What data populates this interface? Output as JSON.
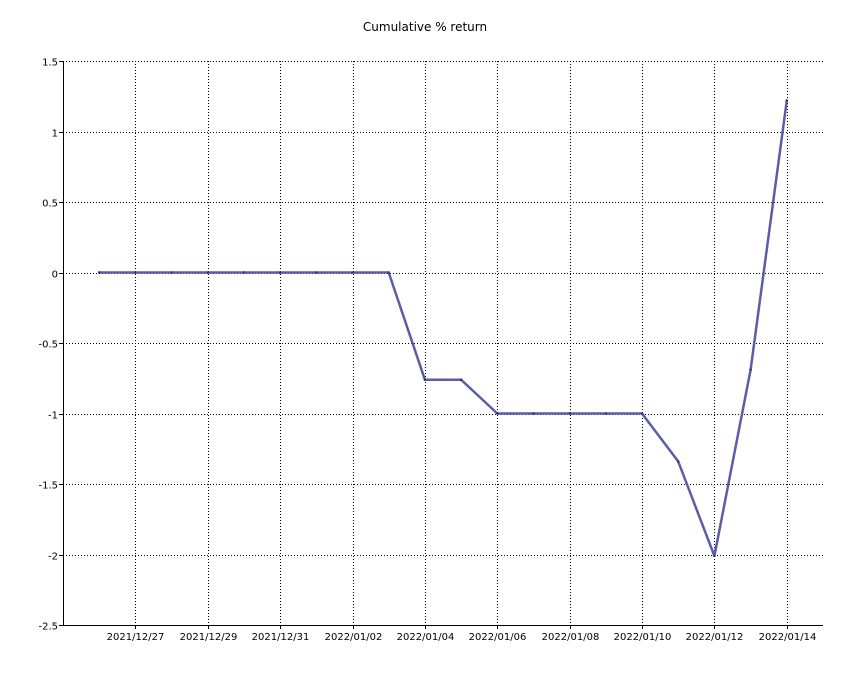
{
  "chart_data": {
    "type": "line",
    "title": "Cumulative % return",
    "xlabel": "",
    "ylabel": "",
    "ylim": [
      -2.5,
      1.5
    ],
    "yticks": [
      1.5,
      1,
      0.5,
      0,
      -0.5,
      -1,
      -1.5,
      -2,
      -2.5
    ],
    "ytick_labels": [
      "1.5",
      "1",
      "0.5",
      "0",
      "-0.5",
      "-1",
      "-1.5",
      "-2",
      "-2.5"
    ],
    "xlim": [
      "2021/12/25",
      "2022/01/15"
    ],
    "xtick_labels": [
      "2021/12/27",
      "2021/12/29",
      "2021/12/31",
      "2022/01/02",
      "2022/01/04",
      "2022/01/06",
      "2022/01/08",
      "2022/01/10",
      "2022/01/12",
      "2022/01/14"
    ],
    "grid": true,
    "legend": "none",
    "line_color": "#5b5ea6",
    "series": [
      {
        "x": [
          "2021/12/26",
          "2021/12/27",
          "2021/12/28",
          "2021/12/29",
          "2021/12/30",
          "2021/12/31",
          "2022/01/01",
          "2022/01/02",
          "2022/01/03",
          "2022/01/04",
          "2022/01/05",
          "2022/01/06",
          "2022/01/07",
          "2022/01/08",
          "2022/01/09",
          "2022/01/10",
          "2022/01/11",
          "2022/01/12",
          "2022/01/13",
          "2022/01/14"
        ],
        "values": [
          0,
          0,
          0,
          0,
          0,
          0,
          0,
          0,
          0,
          -0.76,
          -0.76,
          -1.0,
          -1.0,
          -1.0,
          -1.0,
          -1.0,
          -1.34,
          -2.01,
          -0.69,
          1.22
        ]
      }
    ]
  }
}
